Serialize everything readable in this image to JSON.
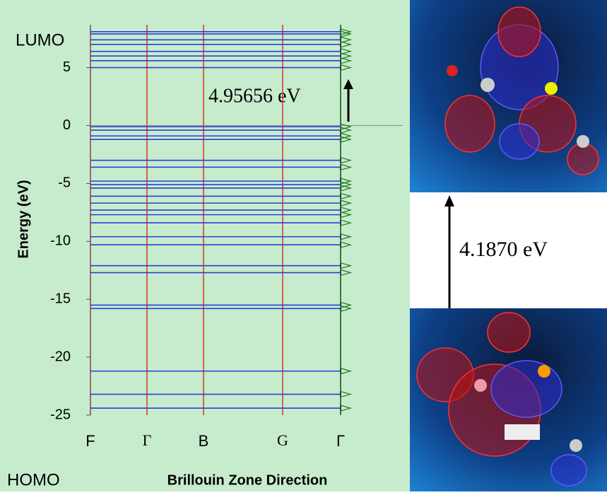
{
  "labels": {
    "lumo": "LUMO",
    "homo": "HOMO",
    "gap": "4.1870 eV"
  },
  "chart_data": {
    "type": "band-structure",
    "y_label": "Energy (eV)",
    "x_label": "Brillouin Zone Direction",
    "annotation": "4.95656 eV",
    "categories": [
      "F",
      "Γ",
      "B",
      "G",
      "Γ"
    ],
    "ylim": [
      -25,
      8.7
    ],
    "yticks": [
      -25,
      -20,
      -15,
      -10,
      -5,
      0,
      5
    ],
    "band_color": "#2b3fd6",
    "kline_color": "#e0302a",
    "dos_color": "#1f7a1f",
    "bands": [
      8.1,
      7.9,
      7.4,
      7.0,
      6.4,
      6.0,
      5.6,
      5.0,
      -0.1,
      -0.4,
      -0.9,
      -1.2,
      -3.0,
      -3.6,
      -4.8,
      -5.1,
      -5.4,
      -6.1,
      -6.7,
      -7.3,
      -7.7,
      -8.4,
      -9.6,
      -10.3,
      -12.1,
      -12.7,
      -15.5,
      -15.8,
      -21.2,
      -23.2,
      -24.4
    ]
  }
}
